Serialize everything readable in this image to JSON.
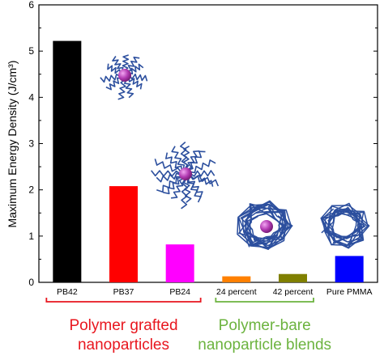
{
  "chart_data": {
    "type": "bar",
    "title": "",
    "xlabel": "",
    "ylabel": "Maximum Energy Density (J/cm³)",
    "ylim": [
      0,
      6
    ],
    "yticks": [
      "0",
      "1",
      "2",
      "3",
      "4",
      "5",
      "6"
    ],
    "grid": false,
    "categories": [
      "PB42",
      "PB37",
      "PB24",
      "24 percent",
      "42 percent",
      "Pure PMMA"
    ],
    "values": [
      5.22,
      2.08,
      0.82,
      0.13,
      0.18,
      0.57
    ],
    "colors": [
      "#000000",
      "#ff0000",
      "#ff00ff",
      "#ff8000",
      "#808000",
      "#0000ff"
    ],
    "groups": [
      {
        "label_lines": [
          "Polymer grafted",
          "nanoparticles"
        ],
        "color": "#e8161e",
        "categories": [
          "PB42",
          "PB37",
          "PB24"
        ]
      },
      {
        "label_lines": [
          "Polymer-bare",
          "nanoparticle blends"
        ],
        "color": "#6cb33f",
        "categories": [
          "24 percent",
          "42 percent"
        ]
      }
    ],
    "illustrations": [
      {
        "name": "grafted-nanoparticle-icon",
        "type": "grafted"
      },
      {
        "name": "grafted-nanoparticle-dense-icon",
        "type": "grafted-dense"
      },
      {
        "name": "bare-nanoparticle-blend-icon",
        "type": "blend"
      },
      {
        "name": "pure-polymer-coil-icon",
        "type": "coil"
      }
    ]
  }
}
